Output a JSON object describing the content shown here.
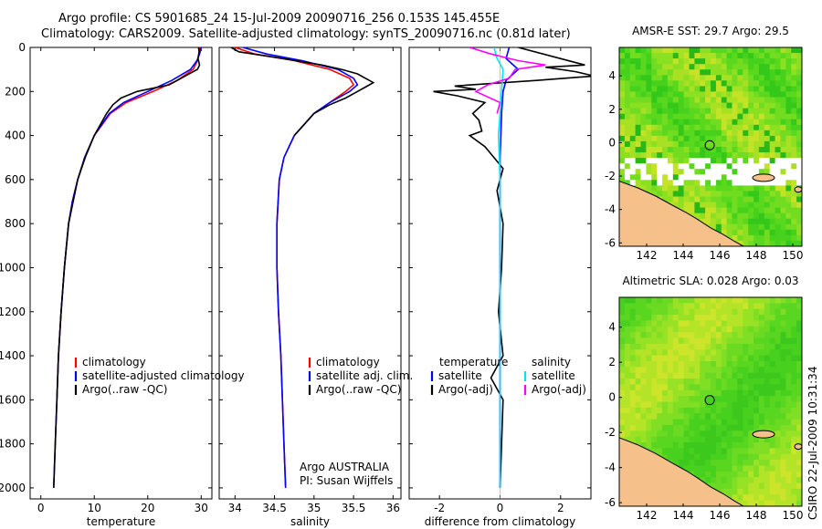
{
  "header": {
    "line1": "Argo profile: CS 5901685_24 15-Jul-2009 20090716_256 0.153S 145.455E",
    "line2": "Climatology: CARS2009. Satellite-adjusted climatology: synTS_20090716.nc (0.81d later)"
  },
  "footer": {
    "stamp": "CSIRO 22-Jul-2009 10:31:34"
  },
  "colors": {
    "clim": "#ff0000",
    "sat": "#0000ff",
    "argo": "#000000",
    "sal_sat": "#00e5ee",
    "sal_argo": "#ff00ff",
    "land": "#f5c08a"
  },
  "chart_data": [
    {
      "type": "line",
      "xlabel": "temperature",
      "xlim": [
        -2,
        32
      ],
      "ylim": [
        0,
        2050
      ],
      "xticks": [
        "0",
        "10",
        "20",
        "30"
      ],
      "yticks": [
        "0",
        "200",
        "400",
        "600",
        "800",
        "1000",
        "1200",
        "1400",
        "1600",
        "1800",
        "2000"
      ],
      "legend": [
        "climatology",
        "satellite-adjusted climatology",
        "Argo(..raw -QC)"
      ],
      "series": [
        {
          "name": "climatology",
          "color": "clim",
          "depth": [
            0,
            30,
            60,
            100,
            150,
            200,
            250,
            300,
            400,
            500,
            600,
            700,
            800,
            1000,
            1200,
            1400,
            1600
          ],
          "values": [
            29.8,
            29.6,
            29.3,
            28.5,
            25.5,
            21,
            16,
            13,
            10,
            8.2,
            6.9,
            5.9,
            5.2,
            4.4,
            3.8,
            3.3,
            3.0
          ]
        },
        {
          "name": "satellite-adjusted climatology",
          "color": "sat",
          "depth": [
            0,
            30,
            60,
            100,
            150,
            200,
            250,
            300,
            400,
            500,
            600,
            700,
            800,
            1000,
            1200,
            1400,
            1600,
            1800,
            2000
          ],
          "values": [
            30.0,
            29.7,
            29.2,
            28,
            24.5,
            20,
            15.5,
            12.8,
            10,
            8.2,
            6.9,
            5.9,
            5.2,
            4.4,
            3.8,
            3.3,
            3.0,
            2.7,
            2.4
          ]
        },
        {
          "name": "Argo(..raw -QC)",
          "color": "argo",
          "depth": [
            0,
            20,
            50,
            80,
            100,
            130,
            170,
            200,
            230,
            260,
            300,
            400,
            500,
            600,
            800,
            1000,
            1200,
            1400,
            1600,
            1800,
            2000
          ],
          "values": [
            29.5,
            29.6,
            29.4,
            29.7,
            29.3,
            27,
            24,
            18,
            15,
            13.5,
            12.3,
            10,
            8.3,
            6.9,
            5.2,
            4.4,
            3.8,
            3.3,
            3.0,
            2.7,
            2.4
          ]
        }
      ]
    },
    {
      "type": "line",
      "xlabel": "salinity",
      "xlim": [
        33.8,
        36.1
      ],
      "ylim": [
        0,
        2050
      ],
      "xticks": [
        "34",
        "34.5",
        "35",
        "35.5",
        "36"
      ],
      "legend": [
        "climatology",
        "satellite adj. clim.",
        "Argo(..raw -QC)"
      ],
      "annotation": [
        "Argo AUSTRALIA",
        "PI: Susan Wijffels"
      ],
      "series": [
        {
          "name": "climatology",
          "color": "clim",
          "depth": [
            0,
            30,
            60,
            100,
            140,
            170,
            200,
            250,
            300,
            400,
            500,
            600,
            800,
            1000,
            1200,
            1400,
            1600,
            1800,
            2000
          ],
          "values": [
            34.0,
            34.25,
            34.75,
            35.2,
            35.45,
            35.5,
            35.4,
            35.2,
            35.0,
            34.75,
            34.62,
            34.56,
            34.53,
            34.53,
            34.55,
            34.58,
            34.6,
            34.62,
            34.64
          ]
        },
        {
          "name": "satellite adj. clim.",
          "color": "sat",
          "depth": [
            0,
            30,
            60,
            100,
            140,
            170,
            200,
            250,
            300,
            400,
            500,
            600,
            800,
            1000,
            1200,
            1400,
            1600,
            1800,
            2000
          ],
          "values": [
            34.1,
            34.4,
            34.85,
            35.3,
            35.5,
            35.55,
            35.45,
            35.2,
            35.0,
            34.75,
            34.62,
            34.56,
            34.53,
            34.53,
            34.55,
            34.58,
            34.6,
            34.62,
            34.64
          ]
        },
        {
          "name": "Argo(..raw -QC)",
          "color": "argo",
          "depth": [
            0,
            20,
            50,
            80,
            100,
            120,
            140,
            160,
            180,
            200,
            230,
            260,
            300,
            400
          ],
          "values": [
            33.95,
            34.05,
            34.6,
            35.1,
            35.35,
            35.55,
            35.65,
            35.75,
            35.65,
            35.55,
            35.4,
            35.2,
            35.0,
            34.75
          ]
        }
      ]
    },
    {
      "type": "line",
      "xlabel": "difference from climatology",
      "xlim": [
        -3,
        3
      ],
      "ylim": [
        0,
        2050
      ],
      "xticks": [
        "-2",
        "0",
        "2"
      ],
      "legend_left": [
        "temperature",
        "satellite",
        "Argo(-adj)"
      ],
      "legend_right": [
        "salinity",
        "satellite",
        "Argo(-adj)"
      ],
      "series": [
        {
          "name": "satellite",
          "color": "sat",
          "depth": [
            0,
            50,
            100,
            150,
            200,
            300,
            500,
            1000,
            2000
          ],
          "values": [
            0.3,
            0.2,
            0.6,
            0.2,
            0.1,
            0.05,
            0,
            0,
            0
          ]
        },
        {
          "name": "Argo(-adj)",
          "color": "argo",
          "depth": [
            0,
            80,
            90,
            110,
            130,
            150,
            175,
            190,
            200,
            220,
            250,
            300,
            330,
            380,
            400,
            450,
            500,
            550,
            650,
            800,
            1000,
            1200,
            1400,
            1500,
            1600,
            1800,
            2000
          ],
          "values": [
            0.6,
            2.8,
            1.5,
            2.5,
            3.1,
            1.2,
            -1.5,
            -0.8,
            -2.2,
            -1.4,
            -0.5,
            -0.9,
            -0.7,
            -0.6,
            -1.0,
            -0.5,
            -0.2,
            0.1,
            -0.1,
            0.1,
            0.05,
            -0.05,
            0.1,
            -0.3,
            0.1,
            0.05,
            0.0
          ]
        },
        {
          "name": "satellite",
          "color": "sal_sat",
          "depth": [
            0,
            50,
            100,
            200,
            300,
            400,
            600,
            1000,
            2000
          ],
          "values": [
            -0.2,
            -0.1,
            0.1,
            0.05,
            0,
            -0.05,
            0,
            0,
            0
          ]
        },
        {
          "name": "Argo(-adj)",
          "color": "sal_argo",
          "depth": [
            0,
            30,
            60,
            80,
            100,
            140,
            170,
            200,
            250,
            300
          ],
          "values": [
            -1.0,
            -0.3,
            0.6,
            1.5,
            0.5,
            0.3,
            -0.4,
            -0.8,
            0.0,
            -0.1
          ]
        }
      ]
    },
    {
      "type": "heatmap",
      "title": "AMSR-E SST: 29.7 Argo: 29.5",
      "xlim": [
        140.5,
        150.5
      ],
      "ylim": [
        -6.2,
        5.7
      ],
      "xticks": [
        "142",
        "144",
        "146",
        "148",
        "150"
      ],
      "yticks": [
        "4",
        "2",
        "0",
        "-2",
        "-4",
        "-6"
      ],
      "argo_position": [
        145.455,
        -0.153
      ]
    },
    {
      "type": "heatmap",
      "title": "Altimetric SLA: 0.028 Argo: 0.03",
      "xlim": [
        140.5,
        150.5
      ],
      "ylim": [
        -6.2,
        5.7
      ],
      "xticks": [
        "142",
        "144",
        "146",
        "148",
        "150"
      ],
      "yticks": [
        "4",
        "2",
        "0",
        "-2",
        "-4",
        "-6"
      ],
      "argo_position": [
        145.455,
        -0.153
      ]
    }
  ]
}
